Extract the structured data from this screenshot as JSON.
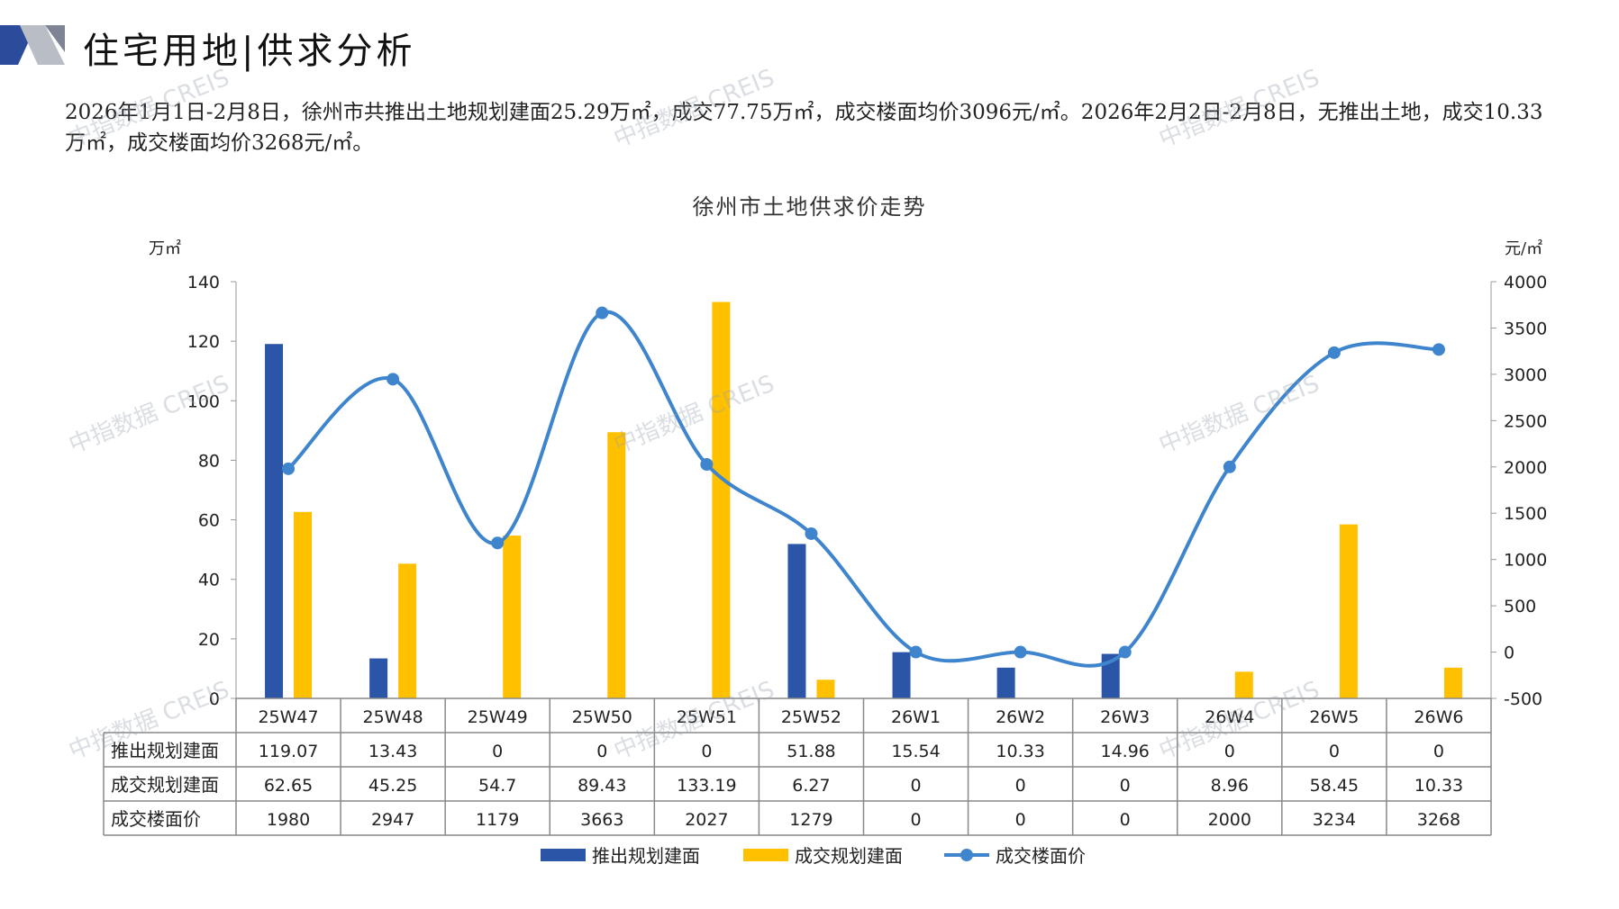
{
  "page": {
    "title": "住宅用地|供求分析",
    "summary": "2026年1月1日-2月8日，徐州市共推出土地规划建面25.29万㎡，成交77.75万㎡，成交楼面均价3096元/㎡。2026年2月2日-2月8日，无推出土地，成交10.33万㎡，成交楼面均价3268元/㎡。",
    "watermark": "中指数据 CREIS"
  },
  "colors": {
    "supply": "#2B55A6",
    "deal": "#FFC000",
    "price": "#3E85CD",
    "logo_dark": "#2B4C9B",
    "logo_light": "#B9BDC6"
  },
  "chart_data": {
    "type": "bar",
    "title": "徐州市土地供求价走势",
    "y_left_unit": "万㎡",
    "y_right_unit": "元/㎡",
    "ylim_left": [
      0,
      140
    ],
    "ylim_right": [
      -500,
      4000
    ],
    "y_left_ticks": [
      "0",
      "20",
      "40",
      "60",
      "80",
      "100",
      "120",
      "140"
    ],
    "y_right_ticks": [
      "-500",
      "0",
      "500",
      "1000",
      "1500",
      "2000",
      "2500",
      "3000",
      "3500",
      "4000"
    ],
    "categories": [
      "25W47",
      "25W48",
      "25W49",
      "25W50",
      "25W51",
      "25W52",
      "26W1",
      "26W2",
      "26W3",
      "26W4",
      "26W5",
      "26W6"
    ],
    "series": [
      {
        "name": "推出规划建面",
        "type": "bar",
        "axis": "left",
        "values": [
          119.07,
          13.43,
          0,
          0,
          0,
          51.88,
          15.54,
          10.33,
          14.96,
          0,
          0,
          0
        ],
        "labels": [
          "119.07",
          "13.43",
          "0",
          "0",
          "0",
          "51.88",
          "15.54",
          "10.33",
          "14.96",
          "0",
          "0",
          "0"
        ]
      },
      {
        "name": "成交规划建面",
        "type": "bar",
        "axis": "left",
        "values": [
          62.65,
          45.25,
          54.7,
          89.43,
          133.19,
          6.27,
          0,
          0,
          0,
          8.96,
          58.45,
          10.33
        ],
        "labels": [
          "62.65",
          "45.25",
          "54.7",
          "89.43",
          "133.19",
          "6.27",
          "0",
          "0",
          "0",
          "8.96",
          "58.45",
          "10.33"
        ]
      },
      {
        "name": "成交楼面价",
        "type": "line",
        "axis": "right",
        "values": [
          1980,
          2947,
          1179,
          3663,
          2027,
          1279,
          0,
          0,
          0,
          2000,
          3234,
          3268
        ],
        "labels": [
          "1980",
          "2947",
          "1179",
          "3663",
          "2027",
          "1279",
          "0",
          "0",
          "0",
          "2000",
          "3234",
          "3268"
        ]
      }
    ],
    "legend_position": "bottom",
    "data_table": true
  }
}
